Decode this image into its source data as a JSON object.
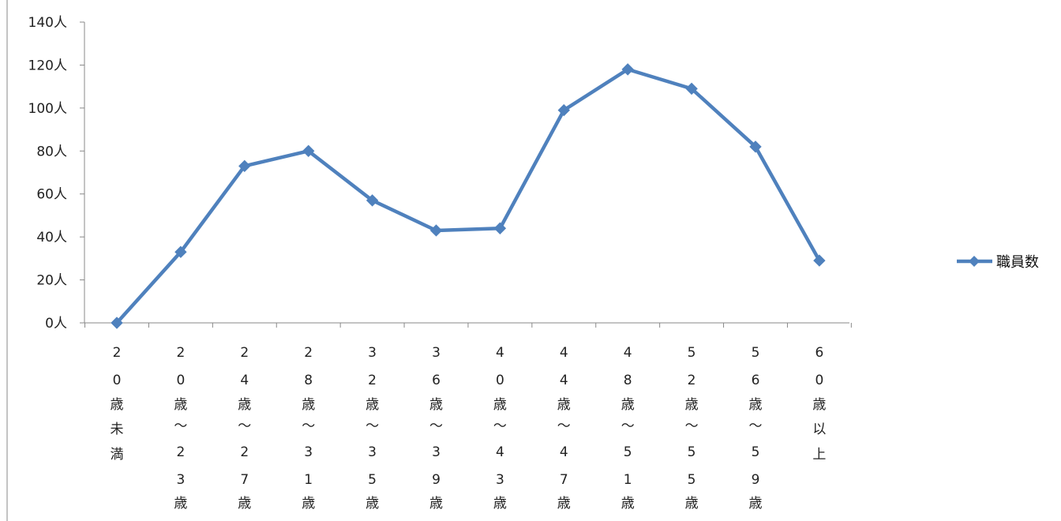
{
  "chart_data": {
    "type": "line",
    "categories": [
      "20歳未満",
      "20歳～23歳",
      "24歳～27歳",
      "28歳～31歳",
      "32歳～35歳",
      "36歳～39歳",
      "40歳～43歳",
      "44歳～47歳",
      "48歳～51歳",
      "52歳～55歳",
      "56歳～59歳",
      "60歳以上"
    ],
    "category_labels": [
      [
        "2",
        "0",
        "歳",
        "未",
        "満"
      ],
      [
        "2",
        "0",
        "歳",
        "～",
        "2",
        "3",
        "歳"
      ],
      [
        "2",
        "4",
        "歳",
        "～",
        "2",
        "7",
        "歳"
      ],
      [
        "2",
        "8",
        "歳",
        "～",
        "3",
        "1",
        "歳"
      ],
      [
        "3",
        "2",
        "歳",
        "～",
        "3",
        "5",
        "歳"
      ],
      [
        "3",
        "6",
        "歳",
        "～",
        "3",
        "9",
        "歳"
      ],
      [
        "4",
        "0",
        "歳",
        "～",
        "4",
        "3",
        "歳"
      ],
      [
        "4",
        "4",
        "歳",
        "～",
        "4",
        "7",
        "歳"
      ],
      [
        "4",
        "8",
        "歳",
        "～",
        "5",
        "1",
        "歳"
      ],
      [
        "5",
        "2",
        "歳",
        "～",
        "5",
        "5",
        "歳"
      ],
      [
        "5",
        "6",
        "歳",
        "～",
        "5",
        "9",
        "歳"
      ],
      [
        "6",
        "0",
        "歳",
        "以",
        "上"
      ]
    ],
    "series": [
      {
        "name": "職員数",
        "values": [
          0,
          33,
          73,
          80,
          57,
          43,
          44,
          99,
          118,
          109,
          82,
          29
        ]
      }
    ],
    "ylim": [
      0,
      140
    ],
    "yticks": [
      0,
      20,
      40,
      60,
      80,
      100,
      120,
      140
    ],
    "ytick_labels": [
      "0人",
      "20人",
      "40人",
      "60人",
      "80人",
      "100人",
      "120人",
      "140人"
    ],
    "grid": false,
    "legend_position": "right",
    "line_color": "#4f81bd",
    "marker": "diamond"
  }
}
